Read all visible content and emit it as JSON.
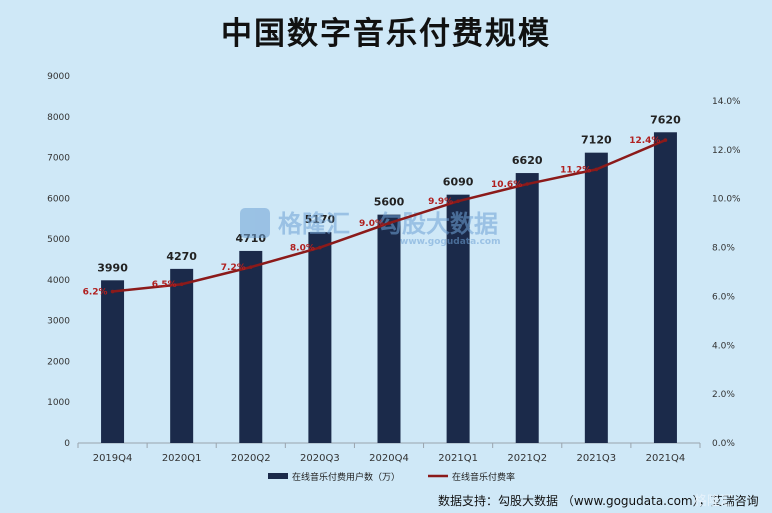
{
  "chart_data": {
    "type": "bar+line",
    "title": "中国数字音乐付费规模",
    "categories": [
      "2019Q4",
      "2020Q1",
      "2020Q2",
      "2020Q3",
      "2020Q4",
      "2021Q1",
      "2021Q2",
      "2021Q3",
      "2021Q4"
    ],
    "bar_series": {
      "name": "在线音乐付费用户数（万）",
      "values": [
        3990,
        4270,
        4710,
        5170,
        5600,
        6090,
        6620,
        7120,
        7620
      ],
      "labels": [
        "3990",
        "4270",
        "4710",
        "5170",
        "5600",
        "6090",
        "6620",
        "7120",
        "7620"
      ],
      "color": "#1b2a4a"
    },
    "line_series": {
      "name": "在线音乐付费率",
      "values": [
        6.2,
        6.5,
        7.2,
        8.0,
        9.0,
        9.9,
        10.6,
        11.2,
        12.4
      ],
      "labels": [
        "6.2%",
        "6.5%",
        "7.2%",
        "8.0%",
        "9.0%",
        "9.9%",
        "10.6%",
        "11.2%",
        "12.4%"
      ],
      "color": "#8b1a1a"
    },
    "left_axis": {
      "ylim": [
        0,
        9000
      ],
      "ticks": [
        "0",
        "1000",
        "2000",
        "3000",
        "4000",
        "5000",
        "6000",
        "7000",
        "8000",
        "9000"
      ]
    },
    "right_axis": {
      "ylim": [
        0,
        14
      ],
      "ticks": [
        "0.0%",
        "2.0%",
        "4.0%",
        "6.0%",
        "8.0%",
        "10.0%",
        "12.0%",
        "14.0%"
      ]
    },
    "legend_position": "bottom",
    "grid": false
  },
  "source_text": "数据支持：勾股大数据 （www.gogudata.com），艾瑞咨询",
  "watermark": {
    "brand": "格隆汇",
    "sub": "勾股大数据",
    "url": "www.gogudata.com"
  },
  "corner_watermark": "格隆汇"
}
